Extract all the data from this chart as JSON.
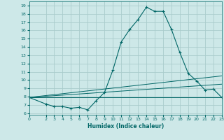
{
  "xlabel": "Humidex (Indice chaleur)",
  "bg_color": "#cde8e8",
  "grid_color": "#aacccc",
  "line_color": "#006666",
  "xlim": [
    0,
    23
  ],
  "ylim": [
    5.8,
    19.5
  ],
  "yticks": [
    6,
    7,
    8,
    9,
    10,
    11,
    12,
    13,
    14,
    15,
    16,
    17,
    18,
    19
  ],
  "xticks": [
    0,
    2,
    3,
    4,
    5,
    6,
    7,
    8,
    9,
    10,
    11,
    12,
    13,
    14,
    15,
    16,
    17,
    18,
    19,
    20,
    21,
    22,
    23
  ],
  "line1_x": [
    0,
    2,
    3,
    4,
    5,
    6,
    7,
    8,
    9,
    10,
    11,
    12,
    13,
    14,
    15,
    16,
    17,
    18,
    19,
    20,
    21,
    22,
    23
  ],
  "line1_y": [
    7.9,
    7.1,
    6.8,
    6.8,
    6.6,
    6.7,
    6.4,
    7.5,
    8.5,
    11.2,
    14.6,
    16.1,
    17.3,
    18.8,
    18.3,
    18.3,
    16.1,
    13.3,
    10.8,
    9.9,
    8.8,
    8.9,
    7.9
  ],
  "line2_x": [
    0,
    23
  ],
  "line2_y": [
    7.9,
    7.9
  ],
  "line3_x": [
    0,
    23
  ],
  "line3_y": [
    7.9,
    10.5
  ],
  "line4_x": [
    0,
    23
  ],
  "line4_y": [
    7.9,
    9.5
  ]
}
